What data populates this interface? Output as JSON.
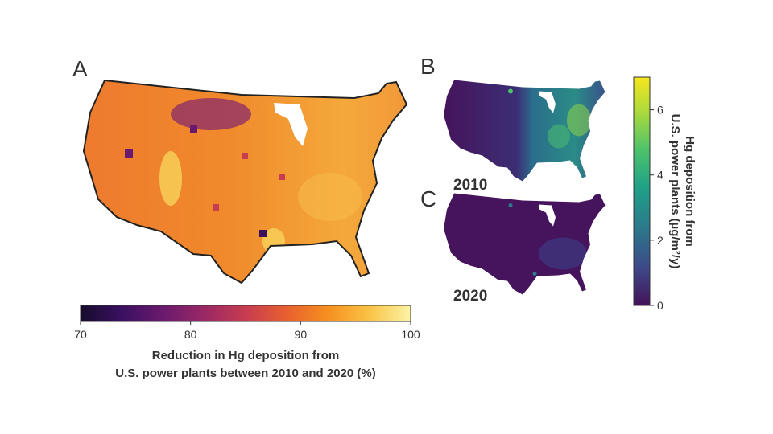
{
  "panels": {
    "A": {
      "letter": "A",
      "colorbar": {
        "ticks": [
          "70",
          "80",
          "90",
          "100"
        ],
        "tick_values": [
          70,
          80,
          90,
          100
        ],
        "range": [
          70,
          100
        ],
        "title_line1": "Reduction in Hg deposition from",
        "title_line2": "U.S. power plants between 2010 and 2020 (%)",
        "colormap": [
          "#160b2c",
          "#3b1061",
          "#6a1a6e",
          "#9a2865",
          "#c73c50",
          "#e8602f",
          "#f6901f",
          "#f9c346",
          "#fcf4a6"
        ]
      }
    },
    "B": {
      "letter": "B",
      "year": "2010"
    },
    "C": {
      "letter": "C",
      "year": "2020"
    },
    "right_colorbar": {
      "ticks": [
        "0",
        "2",
        "4",
        "6"
      ],
      "tick_values": [
        0,
        2,
        4,
        6
      ],
      "range": [
        0,
        7
      ],
      "title_line1": "Hg deposition from",
      "title_line2": "U.S. power plants (µg/m²/y)",
      "colormap": [
        "#44125a",
        "#3d4a8a",
        "#2b7b8c",
        "#1fa287",
        "#4dc26b",
        "#a7d93e",
        "#f7e61e"
      ]
    }
  },
  "chart_data": {
    "type": "heatmap",
    "maps": [
      {
        "panel": "A",
        "variable": "Reduction in Hg deposition from U.S. power plants between 2010 and 2020 (%)",
        "scale_range": [
          70,
          100
        ]
      },
      {
        "panel": "B",
        "year": "2010",
        "variable": "Hg deposition from U.S. power plants (µg/m²/y)",
        "scale_range": [
          0,
          7
        ]
      },
      {
        "panel": "C",
        "year": "2020",
        "variable": "Hg deposition from U.S. power plants (µg/m²/y)",
        "scale_range": [
          0,
          7
        ]
      }
    ]
  }
}
